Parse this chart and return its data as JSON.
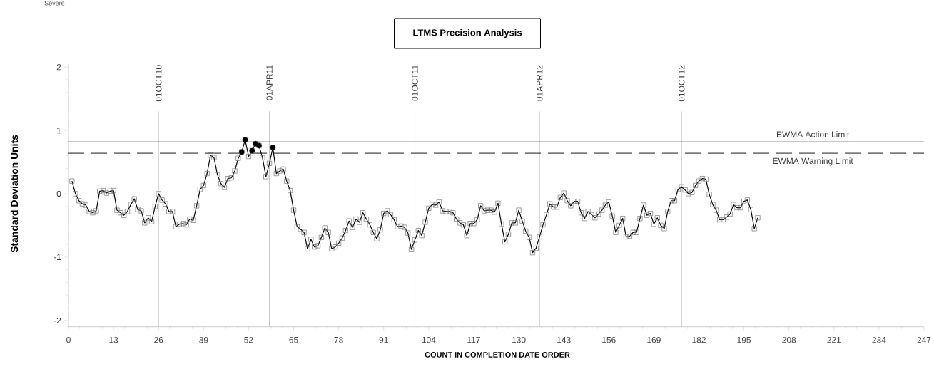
{
  "chart_data": {
    "type": "line",
    "title": "LTMS Precision Analysis",
    "xlabel": "COUNT IN COMPLETION DATE ORDER",
    "ylabel": "Standard Deviation Units",
    "annotations": [
      "Severe"
    ],
    "xlim": [
      0,
      247
    ],
    "xticks": [
      0,
      13,
      26,
      39,
      52,
      65,
      78,
      91,
      104,
      117,
      130,
      143,
      156,
      169,
      182,
      195,
      208,
      221,
      234,
      247
    ],
    "ylim": [
      -2.1,
      2.05
    ],
    "yticks": [
      -2,
      -1,
      0,
      1,
      2
    ],
    "grid": false,
    "marker": "square",
    "line_style": "solid",
    "series": [
      {
        "color": "#000000",
        "x": [
          1,
          2,
          3,
          4,
          5,
          6,
          7,
          8,
          9,
          10,
          11,
          12,
          13,
          14,
          15,
          16,
          17,
          18,
          19,
          20,
          21,
          22,
          23,
          24,
          25,
          26,
          27,
          28,
          29,
          30,
          31,
          32,
          33,
          34,
          35,
          36,
          37,
          38,
          39,
          40,
          41,
          42,
          43,
          44,
          45,
          46,
          47,
          48,
          49,
          50,
          51,
          52,
          53,
          54,
          55,
          56,
          57,
          58,
          59,
          60,
          61,
          62,
          63,
          64,
          65,
          66,
          67,
          68,
          69,
          70,
          71,
          72,
          73,
          74,
          75,
          76,
          77,
          78,
          79,
          80,
          81,
          82,
          83,
          84,
          85,
          86,
          87,
          88,
          89,
          90,
          91,
          92,
          93,
          94,
          95,
          96,
          97,
          98,
          99,
          100,
          101,
          102,
          103,
          104,
          105,
          106,
          107,
          108,
          109,
          110,
          111,
          112,
          113,
          114,
          115,
          116,
          117,
          118,
          119,
          120,
          121,
          122,
          123,
          124,
          125,
          126,
          127,
          128,
          129,
          130,
          131,
          132,
          133,
          134,
          135,
          136,
          137,
          138,
          139,
          140,
          141,
          142,
          143,
          144,
          145,
          146,
          147,
          148,
          149,
          150,
          151,
          152,
          153,
          154,
          155,
          156,
          157,
          158,
          159,
          160,
          161,
          162,
          163,
          164,
          165,
          166,
          167,
          168,
          169,
          170,
          171,
          172,
          173,
          174,
          175,
          176,
          177,
          178,
          179,
          180,
          181,
          182,
          183,
          184,
          185,
          186,
          187,
          188,
          189,
          190,
          191,
          192,
          193,
          194,
          195,
          196,
          197,
          198,
          199
        ],
        "values": [
          0.2,
          0.0,
          -0.11,
          -0.16,
          -0.18,
          -0.28,
          -0.3,
          -0.27,
          0.04,
          0.05,
          0.01,
          0.04,
          0.05,
          -0.26,
          -0.3,
          -0.34,
          -0.28,
          -0.17,
          -0.08,
          -0.25,
          -0.27,
          -0.46,
          -0.38,
          -0.44,
          -0.2,
          0.0,
          -0.1,
          -0.16,
          -0.28,
          -0.28,
          -0.52,
          -0.48,
          -0.47,
          -0.49,
          -0.4,
          -0.42,
          -0.19,
          0.07,
          0.13,
          0.32,
          0.61,
          0.57,
          0.3,
          0.16,
          0.1,
          0.24,
          0.25,
          0.36,
          0.56,
          0.66,
          0.85,
          0.59,
          0.68,
          0.79,
          0.76,
          0.57,
          0.27,
          0.48,
          0.73,
          0.32,
          0.36,
          0.39,
          0.2,
          0.05,
          -0.26,
          -0.52,
          -0.56,
          -0.61,
          -0.87,
          -0.72,
          -0.84,
          -0.82,
          -0.69,
          -0.54,
          -0.61,
          -0.87,
          -0.84,
          -0.78,
          -0.7,
          -0.58,
          -0.43,
          -0.53,
          -0.4,
          -0.45,
          -0.3,
          -0.4,
          -0.49,
          -0.61,
          -0.71,
          -0.57,
          -0.31,
          -0.27,
          -0.33,
          -0.41,
          -0.52,
          -0.51,
          -0.53,
          -0.62,
          -0.88,
          -0.73,
          -0.58,
          -0.66,
          -0.45,
          -0.23,
          -0.17,
          -0.18,
          -0.13,
          -0.27,
          -0.28,
          -0.28,
          -0.3,
          -0.4,
          -0.46,
          -0.49,
          -0.66,
          -0.47,
          -0.47,
          -0.41,
          -0.19,
          -0.27,
          -0.26,
          -0.26,
          -0.29,
          -0.15,
          -0.48,
          -0.76,
          -0.64,
          -0.46,
          -0.46,
          -0.26,
          -0.43,
          -0.59,
          -0.69,
          -0.93,
          -0.86,
          -0.68,
          -0.49,
          -0.33,
          -0.16,
          -0.21,
          -0.21,
          -0.06,
          0.01,
          -0.11,
          -0.19,
          -0.12,
          -0.12,
          -0.3,
          -0.39,
          -0.28,
          -0.33,
          -0.38,
          -0.32,
          -0.26,
          -0.18,
          -0.13,
          -0.35,
          -0.61,
          -0.5,
          -0.39,
          -0.68,
          -0.67,
          -0.61,
          -0.61,
          -0.39,
          -0.18,
          -0.34,
          -0.31,
          -0.48,
          -0.38,
          -0.5,
          -0.55,
          -0.28,
          -0.11,
          -0.11,
          0.07,
          0.11,
          0.06,
          0.0,
          0.02,
          0.13,
          0.2,
          0.24,
          0.23,
          -0.01,
          -0.17,
          -0.26,
          -0.41,
          -0.41,
          -0.37,
          -0.32,
          -0.17,
          -0.22,
          -0.22,
          -0.12,
          -0.1,
          -0.25,
          -0.55,
          -0.38
        ]
      },
      {
        "type": "scatter",
        "color": "#000000",
        "x": [
          50,
          51,
          53,
          54,
          55,
          59
        ],
        "values": [
          0.66,
          0.85,
          0.68,
          0.79,
          0.76,
          0.73
        ]
      }
    ],
    "ref_lines": [
      {
        "axis": "x",
        "value": 26,
        "label": "01OCT10",
        "color": "#707070"
      },
      {
        "axis": "x",
        "value": 58,
        "label": "01APR11",
        "color": "#707070"
      },
      {
        "axis": "x",
        "value": 100,
        "label": "01OCT11",
        "color": "#707070"
      },
      {
        "axis": "x",
        "value": 136,
        "label": "01APR12",
        "color": "#707070"
      },
      {
        "axis": "x",
        "value": 177,
        "label": "01OCT12",
        "color": "#707070"
      },
      {
        "axis": "y",
        "value": 0.82,
        "label": "EWMA Action Limit",
        "color": "#707070",
        "line_style": "solid"
      },
      {
        "axis": "y",
        "value": 0.64,
        "label": "EWMA Warning Limit",
        "color": "#000000",
        "line_style": "dashed"
      }
    ]
  }
}
